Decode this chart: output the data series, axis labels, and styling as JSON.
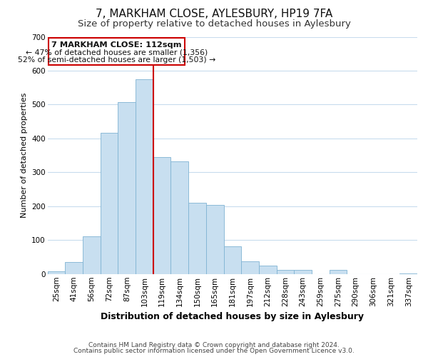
{
  "title": "7, MARKHAM CLOSE, AYLESBURY, HP19 7FA",
  "subtitle": "Size of property relative to detached houses in Aylesbury",
  "xlabel": "Distribution of detached houses by size in Aylesbury",
  "ylabel": "Number of detached properties",
  "bar_labels": [
    "25sqm",
    "41sqm",
    "56sqm",
    "72sqm",
    "87sqm",
    "103sqm",
    "119sqm",
    "134sqm",
    "150sqm",
    "165sqm",
    "181sqm",
    "197sqm",
    "212sqm",
    "228sqm",
    "243sqm",
    "259sqm",
    "275sqm",
    "290sqm",
    "306sqm",
    "321sqm",
    "337sqm"
  ],
  "bar_heights": [
    8,
    35,
    112,
    416,
    507,
    575,
    345,
    333,
    211,
    203,
    82,
    37,
    25,
    12,
    12,
    0,
    12,
    0,
    0,
    0,
    2
  ],
  "bar_facecolor": "#c8dff0",
  "bar_edgecolor": "#7fb3d3",
  "vline_color": "#cc0000",
  "vline_x_index": 5,
  "ylim": [
    0,
    700
  ],
  "yticks": [
    0,
    100,
    200,
    300,
    400,
    500,
    600,
    700
  ],
  "annotation_title": "7 MARKHAM CLOSE: 112sqm",
  "annotation_line1": "← 47% of detached houses are smaller (1,356)",
  "annotation_line2": "52% of semi-detached houses are larger (1,503) →",
  "annotation_box_facecolor": "#ffffff",
  "annotation_box_edgecolor": "#cc0000",
  "footer1": "Contains HM Land Registry data © Crown copyright and database right 2024.",
  "footer2": "Contains public sector information licensed under the Open Government Licence v3.0.",
  "background_color": "#ffffff",
  "grid_color": "#c8dced",
  "title_fontsize": 11,
  "subtitle_fontsize": 9.5,
  "xlabel_fontsize": 9,
  "ylabel_fontsize": 8,
  "tick_fontsize": 7.5,
  "footer_fontsize": 6.5
}
